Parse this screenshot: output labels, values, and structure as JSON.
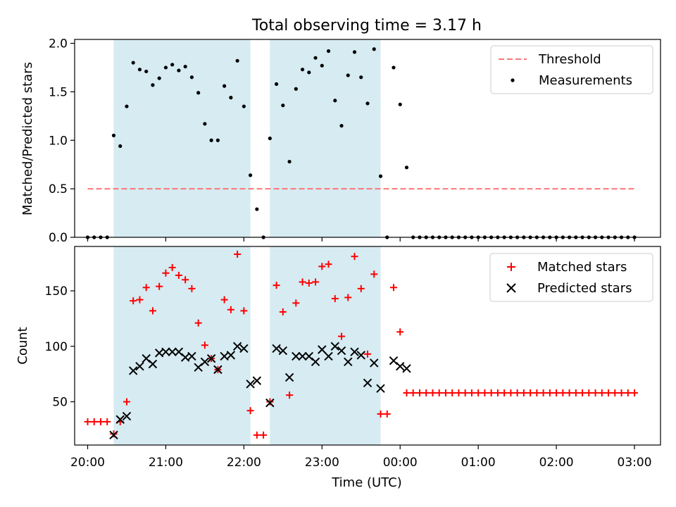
{
  "chart_data": [
    {
      "type": "scatter",
      "title": "Total observing time = 3.17 h",
      "xlabel": "",
      "ylabel": "Matched/Predicted stars",
      "xlim": [
        "19:50",
        "03:20"
      ],
      "ylim": [
        0,
        2.04
      ],
      "yticks": [
        0.0,
        0.5,
        1.0,
        1.5,
        2.0
      ],
      "ytick_labels": [
        "0.0",
        "0.5",
        "1.0",
        "1.5",
        "2.0"
      ],
      "grid": false,
      "legend_position": "top-right",
      "shaded_intervals": [
        [
          "20:20",
          "22:05"
        ],
        [
          "22:20",
          "23:45"
        ]
      ],
      "threshold": {
        "name": "Threshold",
        "value": 0.5,
        "x_range": [
          "20:00",
          "03:00"
        ],
        "color": "#ff7777"
      },
      "series": [
        {
          "name": "Measurements",
          "color": "#000000",
          "points": [
            [
              "20:00",
              0.0
            ],
            [
              "20:05",
              0.0
            ],
            [
              "20:10",
              0.0
            ],
            [
              "20:15",
              0.0
            ],
            [
              "20:20",
              1.05
            ],
            [
              "20:25",
              0.94
            ],
            [
              "20:30",
              1.35
            ],
            [
              "20:35",
              1.8
            ],
            [
              "20:40",
              1.73
            ],
            [
              "20:45",
              1.71
            ],
            [
              "20:50",
              1.57
            ],
            [
              "20:55",
              1.64
            ],
            [
              "21:00",
              1.75
            ],
            [
              "21:05",
              1.78
            ],
            [
              "21:10",
              1.72
            ],
            [
              "21:15",
              1.76
            ],
            [
              "21:20",
              1.65
            ],
            [
              "21:25",
              1.49
            ],
            [
              "21:30",
              1.17
            ],
            [
              "21:35",
              1.0
            ],
            [
              "21:40",
              1.0
            ],
            [
              "21:45",
              1.56
            ],
            [
              "21:50",
              1.44
            ],
            [
              "21:55",
              1.82
            ],
            [
              "22:00",
              1.35
            ],
            [
              "22:05",
              0.64
            ],
            [
              "22:10",
              0.29
            ],
            [
              "22:15",
              0.0
            ],
            [
              "22:20",
              1.02
            ],
            [
              "22:25",
              1.58
            ],
            [
              "22:30",
              1.36
            ],
            [
              "22:35",
              0.78
            ],
            [
              "22:40",
              1.53
            ],
            [
              "22:45",
              1.73
            ],
            [
              "22:50",
              1.7
            ],
            [
              "22:55",
              1.85
            ],
            [
              "23:00",
              1.77
            ],
            [
              "23:05",
              1.92
            ],
            [
              "23:10",
              1.41
            ],
            [
              "23:15",
              1.15
            ],
            [
              "23:20",
              1.67
            ],
            [
              "23:25",
              1.91
            ],
            [
              "23:30",
              1.65
            ],
            [
              "23:35",
              1.38
            ],
            [
              "23:40",
              1.94
            ],
            [
              "23:45",
              0.63
            ],
            [
              "23:50",
              0.0
            ],
            [
              "23:55",
              1.75
            ],
            [
              "00:00",
              1.37
            ],
            [
              "00:05",
              0.72
            ],
            [
              "00:10",
              0.0
            ],
            [
              "00:15",
              0.0
            ],
            [
              "00:20",
              0.0
            ],
            [
              "00:25",
              0.0
            ],
            [
              "00:30",
              0.0
            ],
            [
              "00:35",
              0.0
            ],
            [
              "00:40",
              0.0
            ],
            [
              "00:45",
              0.0
            ],
            [
              "00:50",
              0.0
            ],
            [
              "00:55",
              0.0
            ],
            [
              "01:00",
              0.0
            ],
            [
              "01:05",
              0.0
            ],
            [
              "01:10",
              0.0
            ],
            [
              "01:15",
              0.0
            ],
            [
              "01:20",
              0.0
            ],
            [
              "01:25",
              0.0
            ],
            [
              "01:30",
              0.0
            ],
            [
              "01:35",
              0.0
            ],
            [
              "01:40",
              0.0
            ],
            [
              "01:45",
              0.0
            ],
            [
              "01:50",
              0.0
            ],
            [
              "01:55",
              0.0
            ],
            [
              "02:00",
              0.0
            ],
            [
              "02:05",
              0.0
            ],
            [
              "02:10",
              0.0
            ],
            [
              "02:15",
              0.0
            ],
            [
              "02:20",
              0.0
            ],
            [
              "02:25",
              0.0
            ],
            [
              "02:30",
              0.0
            ],
            [
              "02:35",
              0.0
            ],
            [
              "02:40",
              0.0
            ],
            [
              "02:45",
              0.0
            ],
            [
              "02:50",
              0.0
            ],
            [
              "02:55",
              0.0
            ],
            [
              "03:00",
              0.0
            ]
          ]
        }
      ]
    },
    {
      "type": "scatter",
      "title": "",
      "xlabel": "Time (UTC)",
      "ylabel": "Count",
      "xlim": [
        "19:50",
        "03:20"
      ],
      "ylim": [
        11,
        190
      ],
      "yticks": [
        50,
        100,
        150
      ],
      "ytick_labels": [
        "50",
        "100",
        "150"
      ],
      "xticks": [
        "20:00",
        "21:00",
        "22:00",
        "23:00",
        "00:00",
        "01:00",
        "02:00",
        "03:00"
      ],
      "xtick_labels": [
        "20:00",
        "21:00",
        "22:00",
        "23:00",
        "00:00",
        "01:00",
        "02:00",
        "03:00"
      ],
      "grid": false,
      "legend_position": "top-right",
      "shaded_intervals": [
        [
          "20:20",
          "22:05"
        ],
        [
          "22:20",
          "23:45"
        ]
      ],
      "series": [
        {
          "name": "Matched stars",
          "marker": "+",
          "color": "#ff0000",
          "points": [
            [
              "20:00",
              32
            ],
            [
              "20:05",
              32
            ],
            [
              "20:10",
              32
            ],
            [
              "20:15",
              32
            ],
            [
              "20:20",
              21
            ],
            [
              "20:25",
              32
            ],
            [
              "20:30",
              50
            ],
            [
              "20:35",
              141
            ],
            [
              "20:40",
              142
            ],
            [
              "20:45",
              153
            ],
            [
              "20:50",
              132
            ],
            [
              "20:55",
              154
            ],
            [
              "21:00",
              166
            ],
            [
              "21:05",
              171
            ],
            [
              "21:10",
              164
            ],
            [
              "21:15",
              160
            ],
            [
              "21:20",
              152
            ],
            [
              "21:25",
              121
            ],
            [
              "21:30",
              101
            ],
            [
              "21:35",
              89
            ],
            [
              "21:40",
              79
            ],
            [
              "21:45",
              142
            ],
            [
              "21:50",
              133
            ],
            [
              "21:55",
              183
            ],
            [
              "22:00",
              132
            ],
            [
              "22:05",
              42
            ],
            [
              "22:10",
              20
            ],
            [
              "22:15",
              20
            ],
            [
              "22:20",
              50
            ],
            [
              "22:25",
              155
            ],
            [
              "22:30",
              131
            ],
            [
              "22:35",
              56
            ],
            [
              "22:40",
              139
            ],
            [
              "22:45",
              158
            ],
            [
              "22:50",
              157
            ],
            [
              "22:55",
              158
            ],
            [
              "23:00",
              172
            ],
            [
              "23:05",
              174
            ],
            [
              "23:10",
              143
            ],
            [
              "23:15",
              109
            ],
            [
              "23:20",
              144
            ],
            [
              "23:25",
              181
            ],
            [
              "23:30",
              152
            ],
            [
              "23:35",
              93
            ],
            [
              "23:40",
              165
            ],
            [
              "23:45",
              39
            ],
            [
              "23:50",
              39
            ],
            [
              "23:55",
              153
            ],
            [
              "00:00",
              113
            ],
            [
              "00:05",
              58
            ],
            [
              "00:10",
              58
            ],
            [
              "00:15",
              58
            ],
            [
              "00:20",
              58
            ],
            [
              "00:25",
              58
            ],
            [
              "00:30",
              58
            ],
            [
              "00:35",
              58
            ],
            [
              "00:40",
              58
            ],
            [
              "00:45",
              58
            ],
            [
              "00:50",
              58
            ],
            [
              "00:55",
              58
            ],
            [
              "01:00",
              58
            ],
            [
              "01:05",
              58
            ],
            [
              "01:10",
              58
            ],
            [
              "01:15",
              58
            ],
            [
              "01:20",
              58
            ],
            [
              "01:25",
              58
            ],
            [
              "01:30",
              58
            ],
            [
              "01:35",
              58
            ],
            [
              "01:40",
              58
            ],
            [
              "01:45",
              58
            ],
            [
              "01:50",
              58
            ],
            [
              "01:55",
              58
            ],
            [
              "02:00",
              58
            ],
            [
              "02:05",
              58
            ],
            [
              "02:10",
              58
            ],
            [
              "02:15",
              58
            ],
            [
              "02:20",
              58
            ],
            [
              "02:25",
              58
            ],
            [
              "02:30",
              58
            ],
            [
              "02:35",
              58
            ],
            [
              "02:40",
              58
            ],
            [
              "02:45",
              58
            ],
            [
              "02:50",
              58
            ],
            [
              "02:55",
              58
            ],
            [
              "03:00",
              58
            ]
          ]
        },
        {
          "name": "Predicted stars",
          "marker": "x",
          "color": "#000000",
          "points": [
            [
              "20:20",
              20
            ],
            [
              "20:25",
              34
            ],
            [
              "20:30",
              37
            ],
            [
              "20:35",
              78
            ],
            [
              "20:40",
              82
            ],
            [
              "20:45",
              89
            ],
            [
              "20:50",
              84
            ],
            [
              "20:55",
              94
            ],
            [
              "21:00",
              95
            ],
            [
              "21:05",
              95
            ],
            [
              "21:10",
              95
            ],
            [
              "21:15",
              90
            ],
            [
              "21:20",
              91
            ],
            [
              "21:25",
              81
            ],
            [
              "21:30",
              86
            ],
            [
              "21:35",
              89
            ],
            [
              "21:40",
              79
            ],
            [
              "21:45",
              91
            ],
            [
              "21:50",
              92
            ],
            [
              "21:55",
              100
            ],
            [
              "22:00",
              98
            ],
            [
              "22:05",
              66
            ],
            [
              "22:10",
              69
            ],
            [
              "22:20",
              49
            ],
            [
              "22:25",
              98
            ],
            [
              "22:30",
              96
            ],
            [
              "22:35",
              72
            ],
            [
              "22:40",
              91
            ],
            [
              "22:45",
              91
            ],
            [
              "22:50",
              91
            ],
            [
              "22:55",
              86
            ],
            [
              "23:00",
              97
            ],
            [
              "23:05",
              91
            ],
            [
              "23:10",
              100
            ],
            [
              "23:15",
              96
            ],
            [
              "23:20",
              86
            ],
            [
              "23:25",
              95
            ],
            [
              "23:30",
              92
            ],
            [
              "23:35",
              67
            ],
            [
              "23:40",
              85
            ],
            [
              "23:45",
              62
            ],
            [
              "23:55",
              87
            ],
            [
              "00:00",
              82
            ],
            [
              "00:05",
              80
            ]
          ]
        }
      ]
    }
  ]
}
